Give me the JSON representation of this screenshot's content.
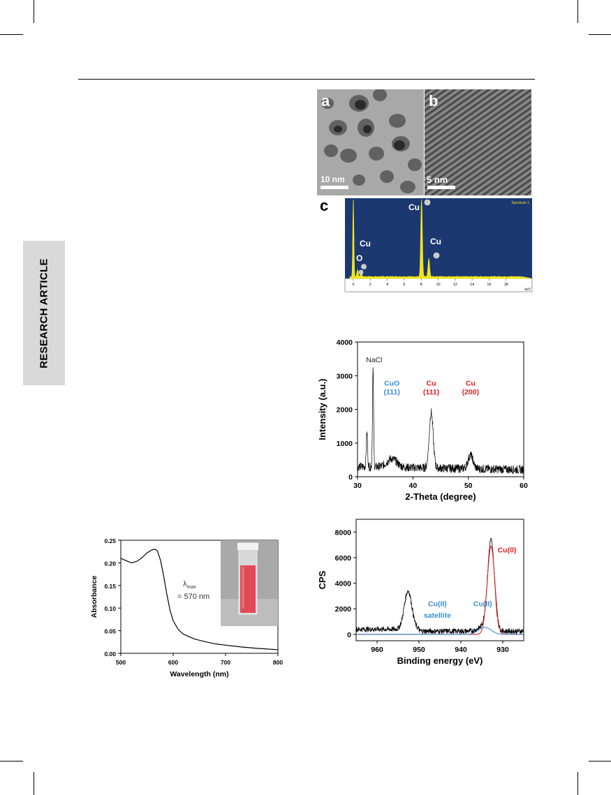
{
  "side_tab": {
    "label": "RESEARCH ARTICLE"
  },
  "tem": {
    "panel_a": {
      "letter": "a",
      "scale_label": "10 nm"
    },
    "panel_b": {
      "letter": "b",
      "scale_label": "5 nm"
    }
  },
  "edx": {
    "letter": "c",
    "spectrum_label": "Spectrum 1",
    "unit": "keV",
    "ticks": [
      "0",
      "2",
      "4",
      "6",
      "8",
      "10",
      "12",
      "14",
      "16",
      "18"
    ],
    "peak_labels": [
      "Cu",
      "Cu",
      "Cu",
      "O"
    ],
    "colors": {
      "bg": "#1c3870",
      "peak": "#f2e51c"
    }
  },
  "chart_data": [
    {
      "type": "line",
      "id": "xrd",
      "xlabel": "2-Theta (degree)",
      "ylabel": "Intensity (a.u.)",
      "xlim": [
        30,
        60
      ],
      "ylim": [
        0,
        4000
      ],
      "xticks": [
        "30",
        "40",
        "50",
        "60"
      ],
      "yticks": [
        "0",
        "1000",
        "2000",
        "3000",
        "4000"
      ],
      "annotations": [
        {
          "text": "NaCl",
          "x": 33.0,
          "y": 3400,
          "color": "#222222"
        },
        {
          "text": "CuO",
          "x": 36.2,
          "y": 2700,
          "color": "#3a8fd0"
        },
        {
          "text": "(111)",
          "x": 36.2,
          "y": 2450,
          "color": "#3a8fd0"
        },
        {
          "text": "Cu",
          "x": 43.3,
          "y": 2700,
          "color": "#e02020"
        },
        {
          "text": "(111)",
          "x": 43.3,
          "y": 2450,
          "color": "#e02020"
        },
        {
          "text": "Cu",
          "x": 50.4,
          "y": 2700,
          "color": "#e02020"
        },
        {
          "text": "(200)",
          "x": 50.4,
          "y": 2450,
          "color": "#e02020"
        }
      ],
      "baseline": 300,
      "peaks": [
        {
          "x": 31.7,
          "height": 1000,
          "width": 0.12
        },
        {
          "x": 32.8,
          "height": 2900,
          "width": 0.1
        },
        {
          "x": 36.2,
          "height": 250,
          "width": 0.9
        },
        {
          "x": 43.3,
          "height": 1650,
          "width": 0.35
        },
        {
          "x": 50.4,
          "height": 400,
          "width": 0.45
        }
      ]
    },
    {
      "type": "line",
      "id": "xps",
      "xlabel": "Binding energy (eV)",
      "ylabel": "CPS",
      "xlim": [
        965,
        925
      ],
      "ylim": [
        -500,
        9000
      ],
      "xticks": [
        "960",
        "950",
        "940",
        "930"
      ],
      "yticks": [
        "0",
        "2000",
        "4000",
        "6000",
        "8000"
      ],
      "annotations": [
        {
          "text": "Cu(0)",
          "x": 929.0,
          "y": 6400,
          "color": "#e02020"
        },
        {
          "text": "Cu(II)",
          "x": 945.6,
          "y": 2200,
          "color": "#3a8fd0"
        },
        {
          "text": "satellite",
          "x": 945.6,
          "y": 1300,
          "color": "#3a8fd0"
        },
        {
          "text": "Cu(II)",
          "x": 934.8,
          "y": 2200,
          "color": "#3a8fd0"
        }
      ],
      "series": [
        {
          "color": "#000000",
          "peaks": [
            [
              952.6,
              3000,
              0.9
            ],
            [
              932.8,
              7000,
              0.8
            ],
            [
              934.5,
              400,
              1.2
            ]
          ],
          "base": 250
        },
        {
          "color": "#e02020",
          "peaks": [
            [
              932.8,
              6900,
              0.9
            ]
          ],
          "base": 0
        },
        {
          "color": "#3a8fd0",
          "peaks": [
            [
              934.3,
              550,
              1.5
            ]
          ],
          "base": 0
        }
      ]
    },
    {
      "type": "line",
      "id": "uv",
      "xlabel": "Wavelength (nm)",
      "ylabel": "Absorbance",
      "xlim": [
        500,
        800
      ],
      "ylim": [
        0,
        0.25
      ],
      "xticks": [
        "500",
        "600",
        "700",
        "800"
      ],
      "yticks": [
        "0.00",
        "0.05",
        "0.10",
        "0.15",
        "0.20",
        "0.25"
      ],
      "annotation_lambda": "λ",
      "annotation_sub": "max",
      "annotation_value": "= 570 nm",
      "points": [
        [
          500,
          0.21
        ],
        [
          510,
          0.205
        ],
        [
          520,
          0.2
        ],
        [
          530,
          0.203
        ],
        [
          540,
          0.211
        ],
        [
          550,
          0.222
        ],
        [
          560,
          0.229
        ],
        [
          566,
          0.23
        ],
        [
          570,
          0.226
        ],
        [
          576,
          0.205
        ],
        [
          582,
          0.17
        ],
        [
          588,
          0.13
        ],
        [
          594,
          0.095
        ],
        [
          600,
          0.072
        ],
        [
          610,
          0.052
        ],
        [
          620,
          0.042
        ],
        [
          640,
          0.032
        ],
        [
          660,
          0.026
        ],
        [
          680,
          0.021
        ],
        [
          700,
          0.018
        ],
        [
          730,
          0.014
        ],
        [
          760,
          0.011
        ],
        [
          800,
          0.008
        ]
      ]
    }
  ]
}
